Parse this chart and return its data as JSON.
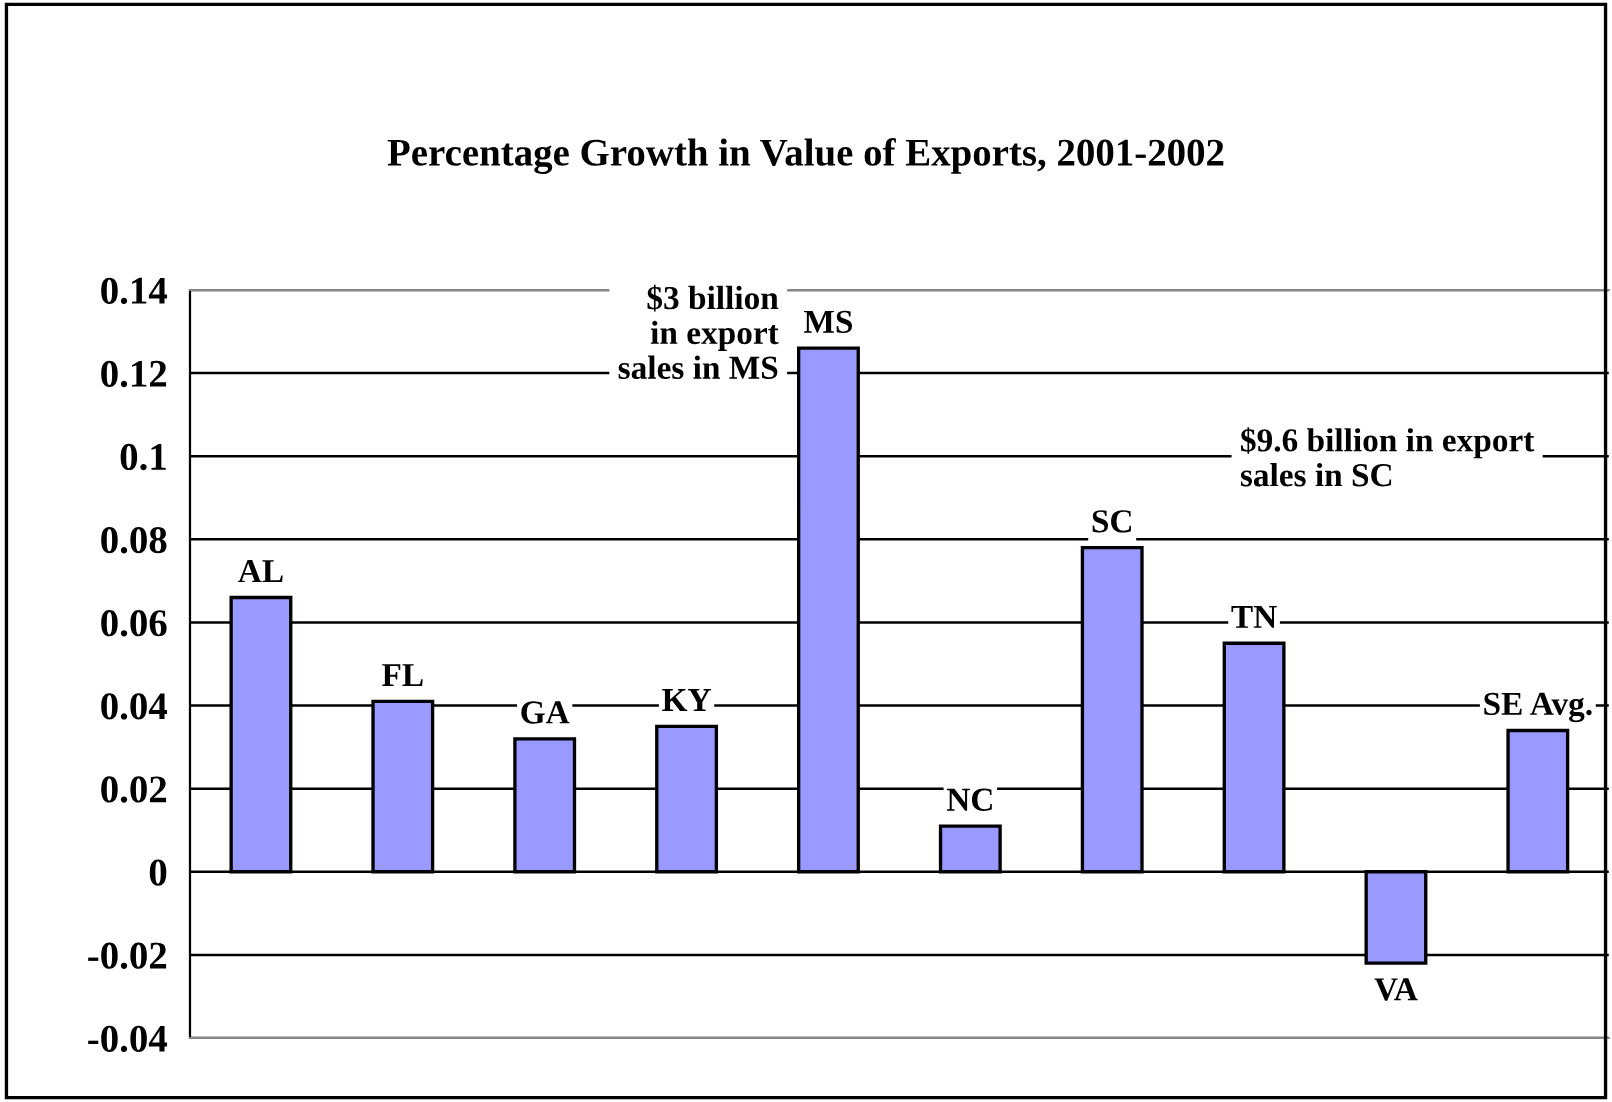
{
  "chart_data": {
    "type": "bar",
    "title": "Percentage Growth in Value of Exports, 2001-2002",
    "categories": [
      "AL",
      "FL",
      "GA",
      "KY",
      "MS",
      "NC",
      "SC",
      "TN",
      "VA",
      "SE Avg."
    ],
    "values": [
      0.066,
      0.041,
      0.032,
      0.035,
      0.126,
      0.011,
      0.078,
      0.055,
      -0.022,
      0.034
    ],
    "color": "#9999ff",
    "ylim": [
      -0.04,
      0.14
    ],
    "yticks": [
      -0.04,
      -0.02,
      0,
      0.02,
      0.04,
      0.06,
      0.08,
      0.1,
      0.12,
      0.14
    ],
    "grid": "y",
    "tick_labels": "y",
    "annotations": [
      "$3 billion\nin export\nsales in MS",
      "$9.6 billion in export\nsales in SC"
    ]
  }
}
